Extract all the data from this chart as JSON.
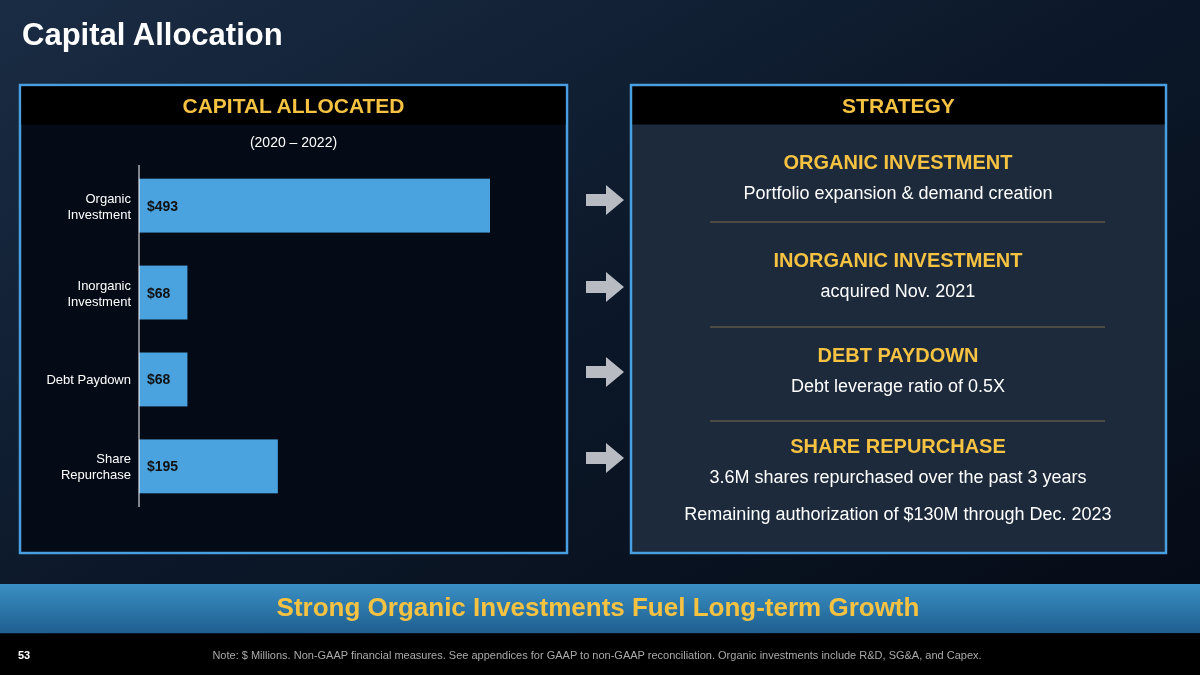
{
  "chart_data": [
    {
      "type": "bar",
      "orientation": "horizontal",
      "title": "CAPITAL ALLOCATED",
      "subtitle": "(2020 – 2022)",
      "categories": [
        "Organic Investment",
        "Inorganic Investment",
        "Debt Paydown",
        "Share Repurchase"
      ],
      "values": [
        493,
        68,
        68,
        195
      ],
      "value_labels": [
        "$493",
        "$68",
        "$68",
        "$195"
      ],
      "color": "#4aa3df",
      "annotations": [
        "Capital Allocation",
        "Strong Organic Investments Fuel Long-term Growth",
        "53",
        "Note: $ Millions. Non-GAAP financial measures. See appendices for GAAP to non-GAAP reconciliation. Organic investments include R&D, SG&A, and Capex."
      ]
    },
    {
      "type": "other",
      "title": "STRATEGY",
      "annotations": [
        "ORGANIC INVESTMENT",
        "Portfolio expansion & demand creation",
        "INORGANIC INVESTMENT",
        "acquired Nov. 2021",
        "DEBT PAYDOWN",
        "Debt leverage ratio of 0.5X",
        "SHARE REPURCHASE",
        "3.6M shares repurchased over the past 3 years",
        "Remaining authorization of $130M through Dec. 2023"
      ]
    }
  ]
}
